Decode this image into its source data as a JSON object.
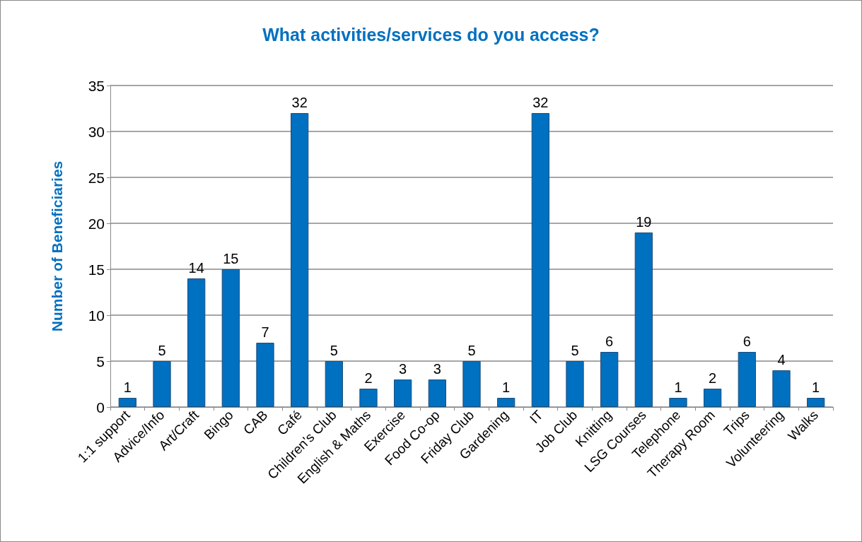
{
  "chart_data": {
    "type": "bar",
    "title": "What activities/services do you access?",
    "ylabel": "Number of Beneficiaries",
    "categories": [
      "1:1 support",
      "Advice/Info",
      "Art/Craft",
      "Bingo",
      "CAB",
      "Café",
      "Children's Club",
      "English & Maths",
      "Exercise",
      "Food Co-op",
      "Friday Club",
      "Gardening",
      "IT",
      "Job Club",
      "Knitting",
      "LSG Courses",
      "Telephone",
      "Therapy Room",
      "Trips",
      "Volunteering",
      "Walks"
    ],
    "values": [
      1,
      5,
      14,
      15,
      7,
      32,
      5,
      2,
      3,
      3,
      5,
      1,
      32,
      5,
      6,
      19,
      1,
      2,
      6,
      4,
      1
    ],
    "color": "#0070c0",
    "ylim": [
      0,
      35
    ],
    "yticks": [
      0,
      5,
      10,
      15,
      20,
      25,
      30,
      35
    ],
    "grid": "y",
    "data_labels": true
  }
}
